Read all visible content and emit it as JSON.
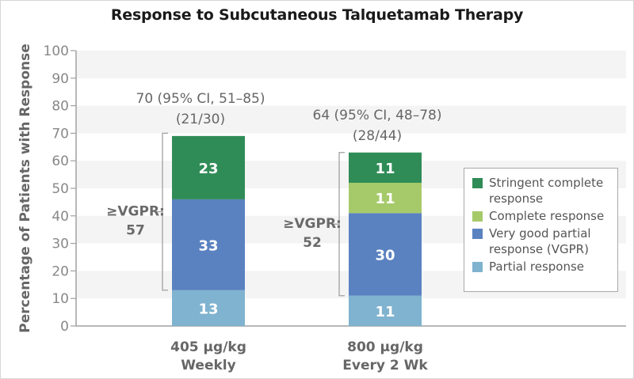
{
  "chart_data": {
    "type": "bar",
    "stacked": true,
    "title": "Response to Subcutaneous Talquetamab Therapy",
    "xlabel": "",
    "ylabel": "Percentage of Patients with Response",
    "ylim": [
      0,
      100
    ],
    "yticks": [
      0,
      10,
      20,
      30,
      40,
      50,
      60,
      70,
      80,
      90,
      100
    ],
    "grid": "alternating horizontal bands",
    "legend_position": "right",
    "categories": [
      {
        "line1": "405 µg/kg",
        "line2": "Weekly"
      },
      {
        "line1": "800 µg/kg",
        "line2": "Every 2 Wk"
      }
    ],
    "series": [
      {
        "name": "Partial response",
        "color": "#7fb3cf",
        "values": [
          13,
          11
        ]
      },
      {
        "name": "Very good partial response (VGPR)",
        "color": "#5a82c0",
        "values": [
          33,
          30
        ]
      },
      {
        "name": "Complete response",
        "color": "#a6ca6a",
        "values": [
          0,
          11
        ]
      },
      {
        "name": "Stringent complete response",
        "color": "#2f8c57",
        "values": [
          23,
          11
        ]
      }
    ],
    "segment_labels": [
      [
        "13",
        "33",
        "",
        "23"
      ],
      [
        "11",
        "30",
        "11",
        "11"
      ]
    ],
    "totals": [
      {
        "line1": "70 (95% CI, 51–85)",
        "line2": "(21/30)"
      },
      {
        "line1": "64 (95% CI, 48–78)",
        "line2": "(28/44)"
      }
    ],
    "brackets": [
      {
        "line1": "≥VGPR:",
        "line2": "57",
        "from": 13,
        "to": 70
      },
      {
        "line1": "≥VGPR:",
        "line2": "52",
        "from": 11,
        "to": 63
      }
    ],
    "legend": [
      {
        "line1": "Stringent complete",
        "line2": "response",
        "color": "#2f8c57"
      },
      {
        "line1": "Complete response",
        "line2": "",
        "color": "#a6ca6a"
      },
      {
        "line1": "Very good partial",
        "line2": "response (VGPR)",
        "color": "#5a82c0"
      },
      {
        "line1": "Partial response",
        "line2": "",
        "color": "#7fb3cf"
      }
    ]
  }
}
